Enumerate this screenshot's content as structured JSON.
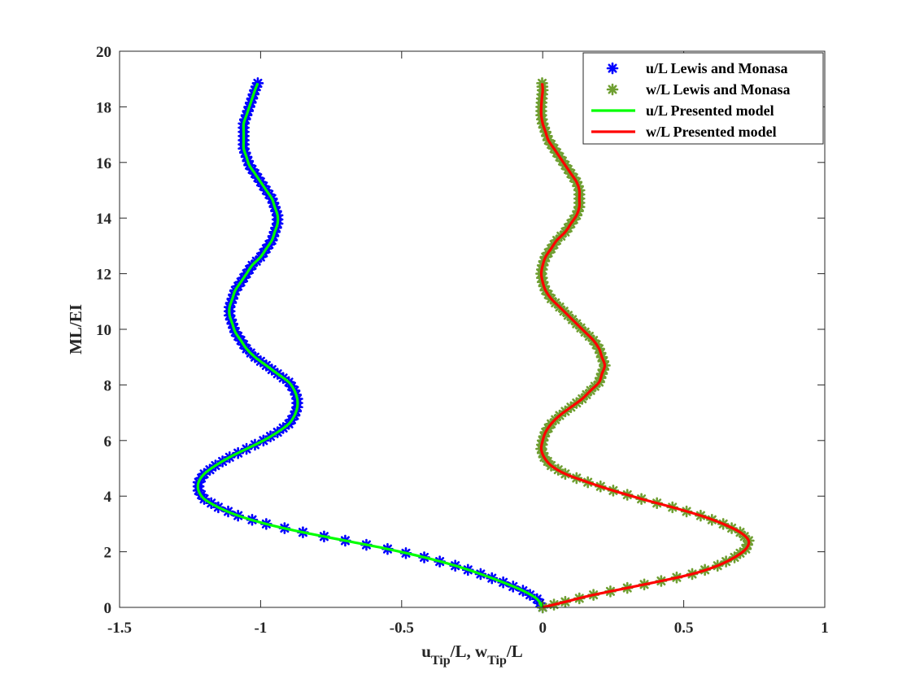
{
  "chart_data": {
    "type": "line",
    "xlabel_parts": {
      "u": "u",
      "u_sub": "Tip",
      "mid": "/L, w",
      "w_sub": "Tip",
      "end": "/L"
    },
    "ylabel": "ML/EI",
    "xlim": [
      -1.5,
      1
    ],
    "ylim": [
      0,
      20
    ],
    "xticks": [
      -1.5,
      -1,
      -0.5,
      0,
      0.5,
      1
    ],
    "xtick_labels": [
      "-1.5",
      "-1",
      "-0.5",
      "0",
      "0.5",
      "1"
    ],
    "yticks": [
      0,
      2,
      4,
      6,
      8,
      10,
      12,
      14,
      16,
      18,
      20
    ],
    "ytick_labels": [
      "0",
      "2",
      "4",
      "6",
      "8",
      "10",
      "12",
      "14",
      "16",
      "18",
      "20"
    ],
    "grid": false,
    "legend_position": "top-right",
    "series": [
      {
        "name": "u/L Lewis and Monasa",
        "style": "markers",
        "color": "#0000ff",
        "points": [
          [
            0,
            0
          ],
          [
            -0.02,
            0.3
          ],
          [
            -0.07,
            0.6
          ],
          [
            -0.14,
            0.9
          ],
          [
            -0.22,
            1.2
          ],
          [
            -0.31,
            1.5
          ],
          [
            -0.42,
            1.8
          ],
          [
            -0.55,
            2.1
          ],
          [
            -0.7,
            2.4
          ],
          [
            -0.85,
            2.7
          ],
          [
            -0.98,
            3.0
          ],
          [
            -1.08,
            3.3
          ],
          [
            -1.15,
            3.6
          ],
          [
            -1.2,
            3.9
          ],
          [
            -1.22,
            4.2
          ],
          [
            -1.22,
            4.5
          ],
          [
            -1.2,
            4.8
          ],
          [
            -1.16,
            5.1
          ],
          [
            -1.11,
            5.4
          ],
          [
            -1.05,
            5.7
          ],
          [
            -0.99,
            6.0
          ],
          [
            -0.94,
            6.3
          ],
          [
            -0.9,
            6.6
          ],
          [
            -0.88,
            6.9
          ],
          [
            -0.87,
            7.2
          ],
          [
            -0.87,
            7.5
          ],
          [
            -0.88,
            7.8
          ],
          [
            -0.9,
            8.1
          ],
          [
            -0.94,
            8.4
          ],
          [
            -0.98,
            8.7
          ],
          [
            -1.02,
            9.0
          ],
          [
            -1.05,
            9.3
          ],
          [
            -1.07,
            9.6
          ],
          [
            -1.09,
            9.9
          ],
          [
            -1.1,
            10.2
          ],
          [
            -1.11,
            10.5
          ],
          [
            -1.11,
            10.8
          ],
          [
            -1.1,
            11.1
          ],
          [
            -1.09,
            11.4
          ],
          [
            -1.07,
            11.7
          ],
          [
            -1.05,
            12.0
          ],
          [
            -1.03,
            12.3
          ],
          [
            -1.0,
            12.6
          ],
          [
            -0.98,
            12.9
          ],
          [
            -0.96,
            13.2
          ],
          [
            -0.95,
            13.5
          ],
          [
            -0.94,
            13.8
          ],
          [
            -0.94,
            14.1
          ],
          [
            -0.95,
            14.4
          ],
          [
            -0.96,
            14.7
          ],
          [
            -0.98,
            15.0
          ],
          [
            -1.0,
            15.3
          ],
          [
            -1.02,
            15.6
          ],
          [
            -1.04,
            15.9
          ],
          [
            -1.05,
            16.2
          ],
          [
            -1.06,
            16.5
          ],
          [
            -1.06,
            16.8
          ],
          [
            -1.06,
            17.1
          ],
          [
            -1.06,
            17.4
          ],
          [
            -1.05,
            17.7
          ],
          [
            -1.04,
            18.0
          ],
          [
            -1.03,
            18.3
          ],
          [
            -1.02,
            18.6
          ],
          [
            -1.01,
            18.85
          ]
        ]
      },
      {
        "name": "w/L Lewis and Monasa",
        "style": "markers",
        "color": "#6f9f32",
        "points": [
          [
            0,
            0
          ],
          [
            0.08,
            0.2
          ],
          [
            0.18,
            0.45
          ],
          [
            0.3,
            0.7
          ],
          [
            0.42,
            0.95
          ],
          [
            0.53,
            1.2
          ],
          [
            0.62,
            1.5
          ],
          [
            0.68,
            1.8
          ],
          [
            0.72,
            2.1
          ],
          [
            0.73,
            2.4
          ],
          [
            0.7,
            2.7
          ],
          [
            0.64,
            3.0
          ],
          [
            0.56,
            3.3
          ],
          [
            0.46,
            3.6
          ],
          [
            0.35,
            3.9
          ],
          [
            0.25,
            4.2
          ],
          [
            0.16,
            4.5
          ],
          [
            0.08,
            4.8
          ],
          [
            0.03,
            5.1
          ],
          [
            0.005,
            5.4
          ],
          [
            -0.005,
            5.7
          ],
          [
            0.0,
            6.0
          ],
          [
            0.01,
            6.3
          ],
          [
            0.03,
            6.6
          ],
          [
            0.06,
            6.9
          ],
          [
            0.1,
            7.2
          ],
          [
            0.14,
            7.5
          ],
          [
            0.17,
            7.8
          ],
          [
            0.2,
            8.1
          ],
          [
            0.21,
            8.4
          ],
          [
            0.22,
            8.7
          ],
          [
            0.21,
            9.0
          ],
          [
            0.2,
            9.3
          ],
          [
            0.18,
            9.6
          ],
          [
            0.15,
            9.9
          ],
          [
            0.12,
            10.2
          ],
          [
            0.09,
            10.5
          ],
          [
            0.06,
            10.8
          ],
          [
            0.03,
            11.1
          ],
          [
            0.01,
            11.4
          ],
          [
            0.0,
            11.7
          ],
          [
            -0.005,
            12.0
          ],
          [
            0.0,
            12.3
          ],
          [
            0.01,
            12.6
          ],
          [
            0.03,
            12.9
          ],
          [
            0.05,
            13.2
          ],
          [
            0.08,
            13.5
          ],
          [
            0.1,
            13.8
          ],
          [
            0.12,
            14.1
          ],
          [
            0.13,
            14.4
          ],
          [
            0.13,
            14.7
          ],
          [
            0.13,
            15.0
          ],
          [
            0.12,
            15.3
          ],
          [
            0.1,
            15.6
          ],
          [
            0.08,
            15.9
          ],
          [
            0.06,
            16.2
          ],
          [
            0.04,
            16.5
          ],
          [
            0.02,
            16.8
          ],
          [
            0.01,
            17.1
          ],
          [
            0.0,
            17.4
          ],
          [
            -0.005,
            17.7
          ],
          [
            -0.005,
            18.0
          ],
          [
            -0.003,
            18.3
          ],
          [
            0.0,
            18.6
          ],
          [
            -0.002,
            18.85
          ]
        ]
      },
      {
        "name": "u/L Presented model",
        "style": "line",
        "color": "#00ff00",
        "points": [
          [
            0,
            0
          ],
          [
            -0.02,
            0.3
          ],
          [
            -0.07,
            0.6
          ],
          [
            -0.14,
            0.9
          ],
          [
            -0.22,
            1.2
          ],
          [
            -0.31,
            1.5
          ],
          [
            -0.42,
            1.8
          ],
          [
            -0.55,
            2.1
          ],
          [
            -0.7,
            2.4
          ],
          [
            -0.85,
            2.7
          ],
          [
            -0.98,
            3.0
          ],
          [
            -1.08,
            3.3
          ],
          [
            -1.15,
            3.6
          ],
          [
            -1.2,
            3.9
          ],
          [
            -1.22,
            4.2
          ],
          [
            -1.22,
            4.5
          ],
          [
            -1.2,
            4.8
          ],
          [
            -1.16,
            5.1
          ],
          [
            -1.11,
            5.4
          ],
          [
            -1.05,
            5.7
          ],
          [
            -0.99,
            6.0
          ],
          [
            -0.94,
            6.3
          ],
          [
            -0.9,
            6.6
          ],
          [
            -0.88,
            6.9
          ],
          [
            -0.87,
            7.2
          ],
          [
            -0.87,
            7.5
          ],
          [
            -0.88,
            7.8
          ],
          [
            -0.9,
            8.1
          ],
          [
            -0.94,
            8.4
          ],
          [
            -0.98,
            8.7
          ],
          [
            -1.02,
            9.0
          ],
          [
            -1.05,
            9.3
          ],
          [
            -1.07,
            9.6
          ],
          [
            -1.09,
            9.9
          ],
          [
            -1.1,
            10.2
          ],
          [
            -1.11,
            10.5
          ],
          [
            -1.11,
            10.8
          ],
          [
            -1.1,
            11.1
          ],
          [
            -1.09,
            11.4
          ],
          [
            -1.07,
            11.7
          ],
          [
            -1.05,
            12.0
          ],
          [
            -1.03,
            12.3
          ],
          [
            -1.0,
            12.6
          ],
          [
            -0.98,
            12.9
          ],
          [
            -0.96,
            13.2
          ],
          [
            -0.95,
            13.5
          ],
          [
            -0.94,
            13.8
          ],
          [
            -0.94,
            14.1
          ],
          [
            -0.95,
            14.4
          ],
          [
            -0.96,
            14.7
          ],
          [
            -0.98,
            15.0
          ],
          [
            -1.0,
            15.3
          ],
          [
            -1.02,
            15.6
          ],
          [
            -1.04,
            15.9
          ],
          [
            -1.05,
            16.2
          ],
          [
            -1.06,
            16.5
          ],
          [
            -1.06,
            16.8
          ],
          [
            -1.06,
            17.1
          ],
          [
            -1.06,
            17.4
          ],
          [
            -1.05,
            17.7
          ],
          [
            -1.04,
            18.0
          ],
          [
            -1.03,
            18.3
          ],
          [
            -1.02,
            18.6
          ],
          [
            -1.01,
            18.85
          ]
        ]
      },
      {
        "name": "w/L Presented model",
        "style": "line",
        "color": "#ff0000",
        "points": [
          [
            0,
            0
          ],
          [
            0.08,
            0.2
          ],
          [
            0.18,
            0.45
          ],
          [
            0.3,
            0.7
          ],
          [
            0.42,
            0.95
          ],
          [
            0.53,
            1.2
          ],
          [
            0.62,
            1.5
          ],
          [
            0.68,
            1.8
          ],
          [
            0.72,
            2.1
          ],
          [
            0.73,
            2.4
          ],
          [
            0.7,
            2.7
          ],
          [
            0.64,
            3.0
          ],
          [
            0.56,
            3.3
          ],
          [
            0.46,
            3.6
          ],
          [
            0.35,
            3.9
          ],
          [
            0.25,
            4.2
          ],
          [
            0.16,
            4.5
          ],
          [
            0.08,
            4.8
          ],
          [
            0.03,
            5.1
          ],
          [
            0.005,
            5.4
          ],
          [
            -0.005,
            5.7
          ],
          [
            0.0,
            6.0
          ],
          [
            0.01,
            6.3
          ],
          [
            0.03,
            6.6
          ],
          [
            0.06,
            6.9
          ],
          [
            0.1,
            7.2
          ],
          [
            0.14,
            7.5
          ],
          [
            0.17,
            7.8
          ],
          [
            0.2,
            8.1
          ],
          [
            0.21,
            8.4
          ],
          [
            0.22,
            8.7
          ],
          [
            0.21,
            9.0
          ],
          [
            0.2,
            9.3
          ],
          [
            0.18,
            9.6
          ],
          [
            0.15,
            9.9
          ],
          [
            0.12,
            10.2
          ],
          [
            0.09,
            10.5
          ],
          [
            0.06,
            10.8
          ],
          [
            0.03,
            11.1
          ],
          [
            0.01,
            11.4
          ],
          [
            0.0,
            11.7
          ],
          [
            -0.005,
            12.0
          ],
          [
            0.0,
            12.3
          ],
          [
            0.01,
            12.6
          ],
          [
            0.03,
            12.9
          ],
          [
            0.05,
            13.2
          ],
          [
            0.08,
            13.5
          ],
          [
            0.1,
            13.8
          ],
          [
            0.12,
            14.1
          ],
          [
            0.13,
            14.4
          ],
          [
            0.13,
            14.7
          ],
          [
            0.13,
            15.0
          ],
          [
            0.12,
            15.3
          ],
          [
            0.1,
            15.6
          ],
          [
            0.08,
            15.9
          ],
          [
            0.06,
            16.2
          ],
          [
            0.04,
            16.5
          ],
          [
            0.02,
            16.8
          ],
          [
            0.01,
            17.1
          ],
          [
            0.0,
            17.4
          ],
          [
            -0.005,
            17.7
          ],
          [
            -0.005,
            18.0
          ],
          [
            -0.003,
            18.3
          ],
          [
            0.0,
            18.6
          ],
          [
            -0.002,
            18.85
          ]
        ]
      }
    ]
  }
}
